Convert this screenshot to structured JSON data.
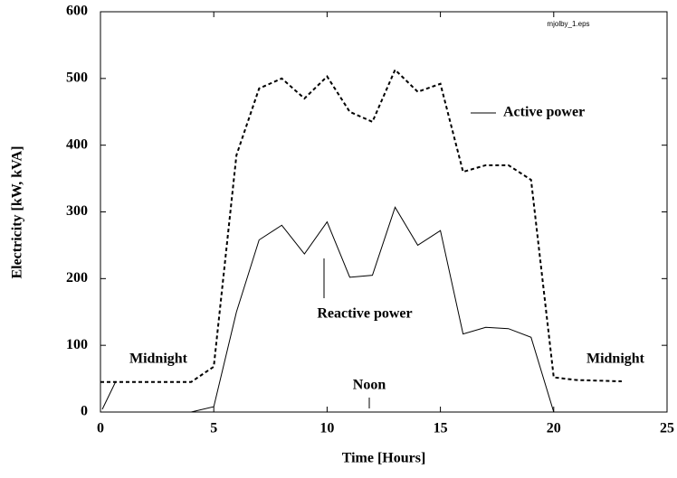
{
  "chart_data": {
    "type": "line",
    "xlabel": "Time [Hours]",
    "ylabel": "Electricity [kW, kVA]",
    "file_label": "mjolby_1.eps",
    "x": [
      0,
      1,
      2,
      3,
      4,
      5,
      6,
      7,
      8,
      9,
      10,
      11,
      12,
      13,
      14,
      15,
      16,
      17,
      18,
      19,
      20,
      21,
      22,
      23
    ],
    "series": [
      {
        "name": "Active power",
        "color": "#000000",
        "dashed": true,
        "values": [
          45,
          45,
          45,
          45,
          45,
          68,
          385,
          485,
          500,
          470,
          503,
          450,
          435,
          513,
          480,
          492,
          360,
          370,
          370,
          348,
          52,
          48,
          47,
          46
        ]
      },
      {
        "name": "Reactive power",
        "color": "#000000",
        "dashed": false,
        "values": [
          0,
          0,
          0,
          0,
          0,
          8,
          150,
          258,
          280,
          237,
          285,
          202,
          205,
          307,
          250,
          272,
          117,
          127,
          125,
          112,
          0,
          0,
          0,
          0
        ]
      }
    ],
    "annotations": [
      "Midnight",
      "Noon",
      "Midnight"
    ],
    "xlim": [
      0,
      25
    ],
    "xticks": [
      0,
      5,
      10,
      15,
      20,
      25
    ],
    "ylim": [
      0,
      600
    ],
    "yticks": [
      0,
      100,
      200,
      300,
      400,
      500,
      600
    ],
    "grid": false
  }
}
